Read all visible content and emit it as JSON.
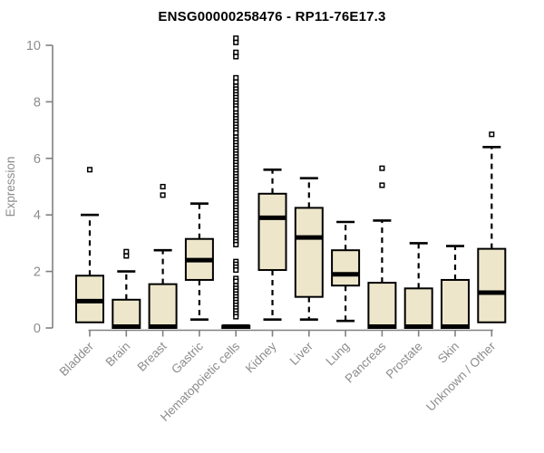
{
  "chart_data": {
    "type": "boxplot",
    "title": "ENSG00000258476 - RP11-76E17.3",
    "ylabel": "Expression",
    "xlabel": "",
    "ylim": [
      0,
      10.4
    ],
    "yticks": [
      0,
      2,
      4,
      6,
      8,
      10
    ],
    "grid": false,
    "legend": "none",
    "categories": [
      "Bladder",
      "Brain",
      "Breast",
      "Gastric",
      "Hematopoietic cells",
      "Kidney",
      "Liver",
      "Lung",
      "Pancreas",
      "Prostate",
      "Skin",
      "Unknown / Other"
    ],
    "series": [
      {
        "category": "Bladder",
        "min": 0.2,
        "q1": 0.2,
        "median": 0.95,
        "q3": 1.85,
        "max": 4.0,
        "outliers": [
          5.6
        ]
      },
      {
        "category": "Brain",
        "min": 0.0,
        "q1": 0.0,
        "median": 0.05,
        "q3": 1.0,
        "max": 2.0,
        "outliers": [
          2.55,
          2.7
        ]
      },
      {
        "category": "Breast",
        "min": 0.0,
        "q1": 0.0,
        "median": 0.05,
        "q3": 1.55,
        "max": 2.75,
        "outliers": [
          4.7,
          5.0
        ]
      },
      {
        "category": "Gastric",
        "min": 0.3,
        "q1": 1.7,
        "median": 2.4,
        "q3": 3.15,
        "max": 4.4,
        "outliers": []
      },
      {
        "category": "Hematopoietic cells",
        "min": 0.0,
        "q1": 0.0,
        "median": 0.05,
        "q3": 0.08,
        "max": 0.08,
        "outliers": [
          10.25,
          10.1,
          9.75,
          9.6,
          8.85,
          8.7,
          8.55,
          8.45,
          8.35,
          8.25,
          8.15,
          8.05,
          7.95,
          7.85,
          7.75,
          7.6,
          7.5,
          7.4,
          7.3,
          7.2,
          7.1,
          7.0,
          6.9,
          6.75,
          6.65,
          6.55,
          6.45,
          6.35,
          6.25,
          6.15,
          6.05,
          5.95,
          5.85,
          5.75,
          5.65,
          5.55,
          5.45,
          5.35,
          5.25,
          5.15,
          5.05,
          4.95,
          4.85,
          4.75,
          4.65,
          4.55,
          4.45,
          4.35,
          4.25,
          4.15,
          4.05,
          3.95,
          3.85,
          3.75,
          3.65,
          3.55,
          3.45,
          3.35,
          3.25,
          3.15,
          3.05,
          2.95,
          2.35,
          2.25,
          2.15,
          2.05,
          1.75,
          1.65,
          1.5,
          1.4,
          1.3,
          1.2,
          1.1,
          1.0,
          0.9,
          0.8,
          0.7,
          0.6,
          0.5,
          0.4
        ]
      },
      {
        "category": "Kidney",
        "min": 0.3,
        "q1": 2.05,
        "median": 3.9,
        "q3": 4.75,
        "max": 5.6,
        "outliers": []
      },
      {
        "category": "Liver",
        "min": 0.3,
        "q1": 1.1,
        "median": 3.2,
        "q3": 4.25,
        "max": 5.3,
        "outliers": []
      },
      {
        "category": "Lung",
        "min": 0.25,
        "q1": 1.5,
        "median": 1.9,
        "q3": 2.75,
        "max": 3.75,
        "outliers": []
      },
      {
        "category": "Pancreas",
        "min": 0.0,
        "q1": 0.0,
        "median": 0.05,
        "q3": 1.6,
        "max": 3.8,
        "outliers": [
          5.05,
          5.65
        ]
      },
      {
        "category": "Prostate",
        "min": 0.0,
        "q1": 0.0,
        "median": 0.05,
        "q3": 1.4,
        "max": 3.0,
        "outliers": []
      },
      {
        "category": "Skin",
        "min": 0.0,
        "q1": 0.0,
        "median": 0.05,
        "q3": 1.7,
        "max": 2.9,
        "outliers": []
      },
      {
        "category": "Unknown / Other",
        "min": 0.2,
        "q1": 0.2,
        "median": 1.25,
        "q3": 2.8,
        "max": 6.4,
        "outliers": [
          6.85
        ]
      }
    ],
    "colors": {
      "box_fill": "#EDE6CB",
      "box_stroke": "#000000",
      "median": "#000000",
      "whisker": "#000000",
      "outlier_fill": "#FFFFFF",
      "outlier_stroke": "#000000",
      "axis_line": "#808080",
      "tick_label": "#8C8C8C",
      "title": "#000000",
      "background": "#FFFFFF"
    }
  }
}
